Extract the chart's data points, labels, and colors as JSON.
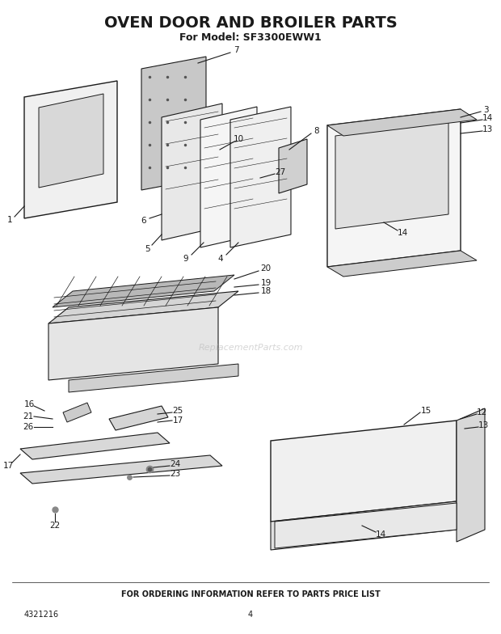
{
  "title": "OVEN DOOR AND BROILER PARTS",
  "subtitle": "For Model: SF3300EWW1",
  "footer": "FOR ORDERING INFORMATION REFER TO PARTS PRICE LIST",
  "part_number": "4321216",
  "page": "4",
  "bg_color": "#ffffff",
  "line_color": "#1a1a1a",
  "label_color": "#1a1a1a",
  "watermark": "ReplacementParts.com",
  "title_fontsize": 14,
  "subtitle_fontsize": 9,
  "footer_fontsize": 7,
  "label_fontsize": 7.5
}
